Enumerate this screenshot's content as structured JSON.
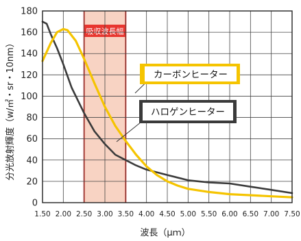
{
  "chart_data": {
    "type": "line",
    "xlabel": "波長（μｍ）",
    "ylabel": "分光放射輝度（w/㎡・sr・10nm）",
    "xlim": [
      1.5,
      7.5
    ],
    "ylim": [
      0,
      180
    ],
    "x_ticks": [
      "1.50",
      "2.00",
      "2.50",
      "3.00",
      "3.50",
      "4.00",
      "4.50",
      "5.00",
      "5.50",
      "6.00",
      "6.50",
      "7.00",
      "7.50"
    ],
    "y_ticks": [
      "0",
      "20",
      "40",
      "60",
      "80",
      "100",
      "120",
      "140",
      "160",
      "180"
    ],
    "grid": true,
    "band": {
      "label": "吸収波長幅",
      "x_start": 2.5,
      "x_end": 3.5,
      "color": "#e8362f",
      "fill": "#f8d3c3"
    },
    "series": [
      {
        "name": "カーボンヒーター",
        "color": "#f5c400",
        "x": [
          1.5,
          1.7,
          1.85,
          2.0,
          2.1,
          2.3,
          2.5,
          2.75,
          3.0,
          3.25,
          3.5,
          3.75,
          4.0,
          4.25,
          4.5,
          4.75,
          5.0,
          5.5,
          6.0,
          6.5,
          7.0,
          7.5
        ],
        "y": [
          133,
          150,
          160,
          163,
          162,
          152,
          135,
          112,
          90,
          72,
          58,
          45,
          34,
          26,
          20,
          16,
          13,
          10,
          8,
          7,
          6,
          5
        ]
      },
      {
        "name": "ハロゲンヒーター",
        "color": "#3a3a3a",
        "x": [
          1.5,
          1.6,
          1.7,
          1.85,
          2.0,
          2.2,
          2.5,
          2.75,
          3.0,
          3.25,
          3.5,
          3.75,
          4.0,
          4.5,
          5.0,
          5.5,
          6.0,
          6.5,
          7.0,
          7.5
        ],
        "y": [
          170,
          168,
          158,
          145,
          130,
          108,
          84,
          67,
          55,
          45,
          40,
          35,
          31,
          26,
          21,
          19,
          18,
          15,
          12,
          9
        ]
      }
    ]
  }
}
